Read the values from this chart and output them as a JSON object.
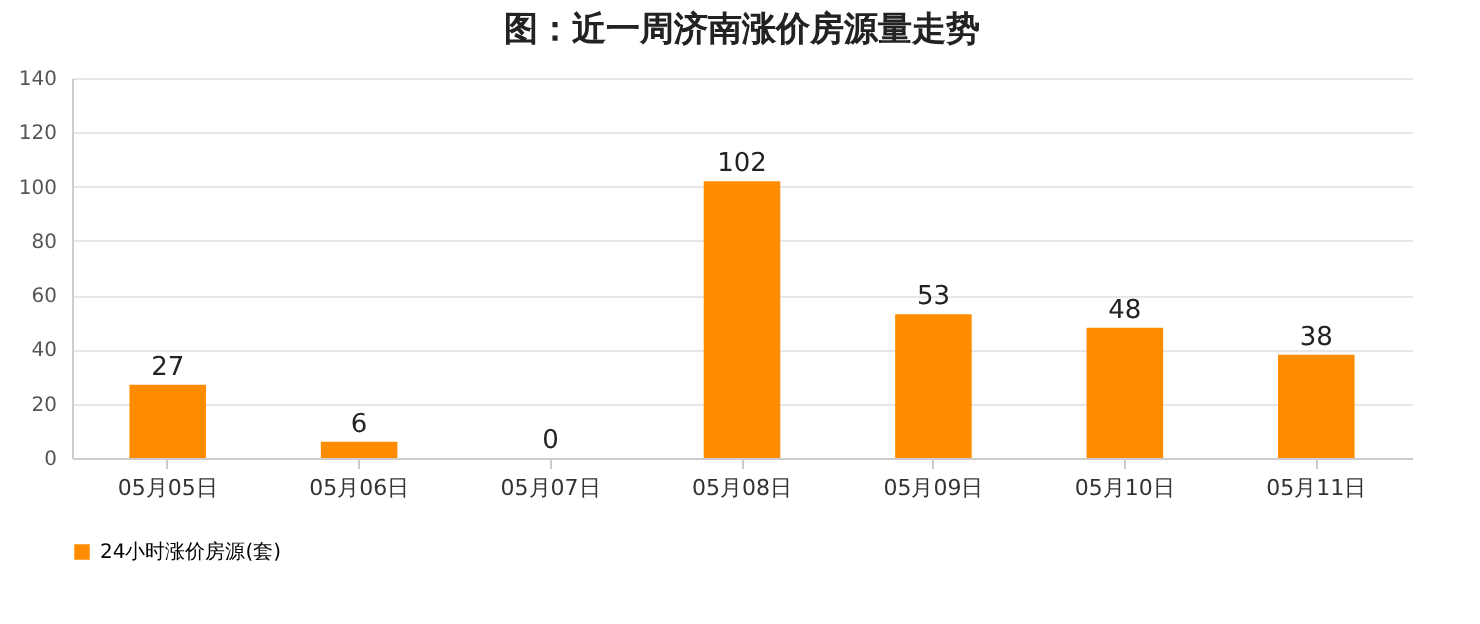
{
  "chart_data": {
    "type": "bar",
    "title": "图：近一周济南涨价房源量走势",
    "categories": [
      "05月05日",
      "05月06日",
      "05月07日",
      "05月08日",
      "05月09日",
      "05月10日",
      "05月11日"
    ],
    "series": [
      {
        "name": "24小时涨价房源(套)",
        "color": "#ff8c00",
        "values": [
          27,
          6,
          0,
          102,
          53,
          48,
          38
        ]
      }
    ],
    "ylim": [
      0,
      140
    ],
    "yticks": [
      0,
      20,
      40,
      60,
      80,
      100,
      120,
      140
    ],
    "grid": "y",
    "legend": "bottom",
    "data_labels": true
  }
}
